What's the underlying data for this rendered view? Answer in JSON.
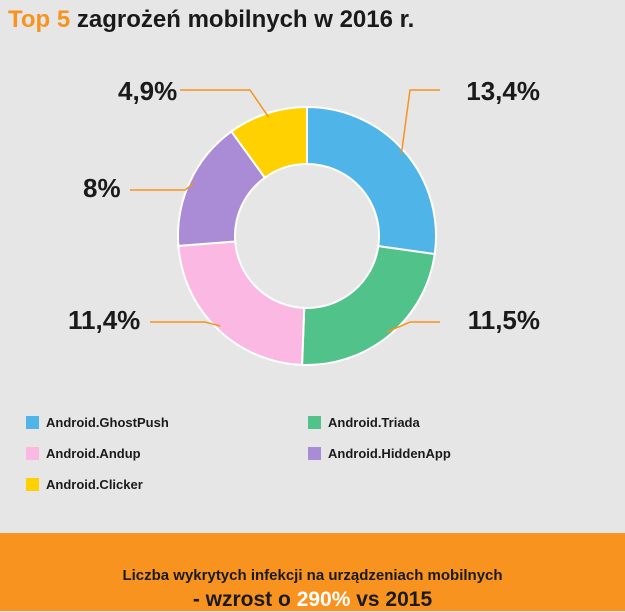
{
  "header": {
    "title_accent": "Top 5",
    "title_rest": " zagrożeń mobilnych w 2016 r."
  },
  "chart_data": {
    "type": "pie",
    "donut": true,
    "slices": [
      {
        "label": "Android.GhostPush",
        "value": 13.4,
        "value_label": "13,4%",
        "color": "#4fb4e8"
      },
      {
        "label": "Android.Triada",
        "value": 11.5,
        "value_label": "11,5%",
        "color": "#52c28b"
      },
      {
        "label": "Android.Andup",
        "value": 11.4,
        "value_label": "11,4%",
        "color": "#fbb8e3"
      },
      {
        "label": "Android.HiddenApp",
        "value": 8,
        "value_label": "8%",
        "color": "#a98bd6"
      },
      {
        "label": "Android.Clicker",
        "value": 4.9,
        "value_label": "4,9%",
        "color": "#ffd100"
      }
    ],
    "leader_color": "#f7931e",
    "legend_placement": "bottom"
  },
  "banner": {
    "line1": "Liczba wykrytych infekcji na urządzeniach mobilnych",
    "line2_prefix": "- wzrost o ",
    "line2_highlight": "290%",
    "line2_suffix": " vs 2015",
    "background": "#f7931e"
  }
}
